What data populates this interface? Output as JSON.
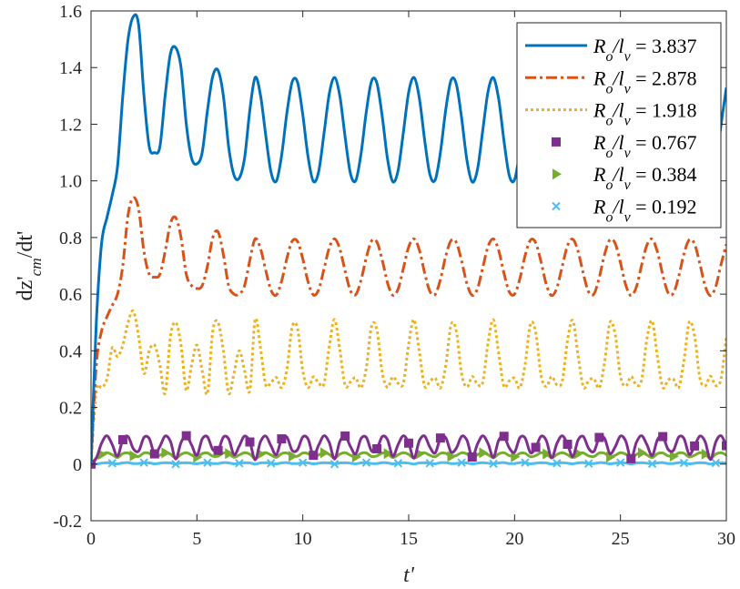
{
  "chart_data": {
    "type": "line",
    "title": "",
    "xlabel": "t'",
    "ylabel": "dz'_cm/dt'",
    "xlim": [
      0,
      30
    ],
    "ylim": [
      -0.2,
      1.6
    ],
    "xticks": [
      0,
      5,
      10,
      15,
      20,
      25,
      30
    ],
    "yticks": [
      -0.2,
      0,
      0.2,
      0.4,
      0.6,
      0.8,
      1.0,
      1.2,
      1.4,
      1.6
    ],
    "xtick_labels": [
      "0",
      "5",
      "10",
      "15",
      "20",
      "25",
      "30"
    ],
    "ytick_labels": [
      "-0.2",
      "0",
      "0.2",
      "0.4",
      "0.6",
      "0.8",
      "1.0",
      "1.2",
      "1.4",
      "1.6"
    ],
    "grid": false,
    "legend_position": "top-right",
    "x_start": 0,
    "x_step": 0.25,
    "series": [
      {
        "name": "R_o/l_v = 3.837",
        "color": "#0072BD",
        "style": "solid",
        "marker": "none",
        "values": [
          0,
          0.5,
          0.78,
          0.87,
          0.95,
          1.05,
          1.3,
          1.5,
          1.58,
          1.55,
          1.3,
          1.12,
          1.1,
          1.12,
          1.3,
          1.45,
          1.47,
          1.4,
          1.2,
          1.08,
          1.06,
          1.1,
          1.25,
          1.37,
          1.39,
          1.3,
          1.12,
          1.02,
          1.01,
          1.08,
          1.25,
          1.365,
          1.304,
          1.16,
          1.03,
          0.999,
          1.09,
          1.24,
          1.35,
          1.348,
          1.233,
          1.084,
          0.998,
          1.033,
          1.166,
          1.308,
          1.365,
          1.299,
          1.154,
          1.026,
          1.001,
          1.095,
          1.245,
          1.353,
          1.345,
          1.228,
          1.078,
          0.997,
          1.037,
          1.172,
          1.313,
          1.365,
          1.294,
          1.147,
          1.023,
          1.003,
          1.101,
          1.251,
          1.355,
          1.342,
          1.221,
          1.073,
          0.996,
          1.041,
          1.179,
          1.317,
          1.364,
          1.289,
          1.141,
          1.019,
          1.004,
          1.107,
          1.257,
          1.357,
          1.339,
          1.215,
          1.068,
          0.996,
          1.046,
          1.186,
          1.321,
          1.363,
          1.283,
          1.135,
          1.016,
          1.007,
          1.112,
          1.263,
          1.359,
          1.335,
          1.209,
          1.063,
          0.995,
          1.05,
          1.192,
          1.325,
          1.362,
          1.278,
          1.128,
          1.013,
          1.009,
          1.119,
          1.269,
          1.36,
          1.332,
          1.202,
          1.058,
          0.995,
          1.055,
          1.198,
          1.329
        ]
      },
      {
        "name": "R_o/l_v = 2.878",
        "color": "#D95319",
        "style": "dashdot",
        "marker": "none",
        "values": [
          0,
          0.35,
          0.47,
          0.52,
          0.56,
          0.6,
          0.7,
          0.88,
          0.94,
          0.9,
          0.75,
          0.67,
          0.66,
          0.67,
          0.75,
          0.85,
          0.87,
          0.8,
          0.67,
          0.63,
          0.62,
          0.63,
          0.7,
          0.8,
          0.82,
          0.74,
          0.63,
          0.6,
          0.6,
          0.63,
          0.72,
          0.795,
          0.762,
          0.684,
          0.614,
          0.597,
          0.646,
          0.727,
          0.787,
          0.786,
          0.724,
          0.643,
          0.597,
          0.616,
          0.688,
          0.764,
          0.795,
          0.759,
          0.681,
          0.612,
          0.598,
          0.649,
          0.73,
          0.788,
          0.784,
          0.721,
          0.64,
          0.596,
          0.618,
          0.691,
          0.767,
          0.795,
          0.757,
          0.677,
          0.61,
          0.599,
          0.652,
          0.734,
          0.789,
          0.783,
          0.717,
          0.637,
          0.596,
          0.62,
          0.694,
          0.769,
          0.795,
          0.754,
          0.674,
          0.608,
          0.6,
          0.655,
          0.737,
          0.791,
          0.781,
          0.714,
          0.634,
          0.595,
          0.623,
          0.698,
          0.771,
          0.794,
          0.751,
          0.671,
          0.607,
          0.601,
          0.659,
          0.74,
          0.792,
          0.779,
          0.711,
          0.632,
          0.595,
          0.625,
          0.702,
          0.774,
          0.794,
          0.748,
          0.667,
          0.605,
          0.603,
          0.662,
          0.743,
          0.792,
          0.777,
          0.707,
          0.629,
          0.595,
          0.627,
          0.705,
          0.776
        ]
      },
      {
        "name": "R_o/l_v = 1.918",
        "color": "#EDB120",
        "style": "dotted",
        "marker": "none",
        "values": [
          0,
          0.26,
          0.27,
          0.3,
          0.41,
          0.38,
          0.42,
          0.5,
          0.54,
          0.45,
          0.32,
          0.4,
          0.42,
          0.35,
          0.25,
          0.45,
          0.5,
          0.42,
          0.26,
          0.35,
          0.42,
          0.33,
          0.25,
          0.47,
          0.5,
          0.4,
          0.25,
          0.32,
          0.4,
          0.33,
          0.26,
          0.51,
          0.411,
          0.28,
          0.288,
          0.306,
          0.27,
          0.334,
          0.484,
          0.479,
          0.329,
          0.27,
          0.308,
          0.286,
          0.283,
          0.416,
          0.51,
          0.403,
          0.278,
          0.29,
          0.305,
          0.269,
          0.34,
          0.487,
          0.474,
          0.324,
          0.271,
          0.308,
          0.285,
          0.286,
          0.424,
          0.51,
          0.398,
          0.276,
          0.292,
          0.304,
          0.269,
          0.347,
          0.491,
          0.47,
          0.318,
          0.272,
          0.309,
          0.282,
          0.289,
          0.43,
          0.509,
          0.39,
          0.274,
          0.294,
          0.303,
          0.269,
          0.353,
          0.495,
          0.464,
          0.313,
          0.273,
          0.309,
          0.28,
          0.293,
          0.436,
          0.507,
          0.383,
          0.272,
          0.295,
          0.301,
          0.269,
          0.359,
          0.499,
          0.458,
          0.309,
          0.275,
          0.309,
          0.279,
          0.297,
          0.443,
          0.505,
          0.377,
          0.271,
          0.297,
          0.3,
          0.27,
          0.366,
          0.501,
          0.452,
          0.304,
          0.276,
          0.31,
          0.277,
          0.301,
          0.449
        ]
      },
      {
        "name": "R_o/l_v = 0.767",
        "color": "#7E2F8E",
        "style": "solid",
        "marker": "square",
        "values": [
          0,
          0.021,
          0.074,
          0.1,
          0.069,
          0.028,
          0.086,
          0.097,
          0.054,
          0.046,
          0.094,
          0.09,
          0.036,
          0.062,
          0.099,
          0.08,
          0.018,
          0.076,
          0.1,
          0.067,
          0.031,
          0.088,
          0.096,
          0.051,
          0.048,
          0.095,
          0.089,
          0.033,
          0.064,
          0.099,
          0.078,
          0.015,
          0.078,
          0.099,
          0.064,
          0.033,
          0.089,
          0.095,
          0.048,
          0.051,
          0.096,
          0.088,
          0.031,
          0.067,
          0.1,
          0.076,
          0.018,
          0.08,
          0.099,
          0.062,
          0.036,
          0.09,
          0.094,
          0.046,
          0.054,
          0.097,
          0.086,
          0.028,
          0.069,
          0.1,
          0.074,
          0.021,
          0.082,
          0.099,
          0.06,
          0.039,
          0.092,
          0.093,
          0.043,
          0.056,
          0.098,
          0.084,
          0.025,
          0.071,
          0.1,
          0.072,
          0.024,
          0.084,
          0.098,
          0.057,
          0.042,
          0.093,
          0.092,
          0.04,
          0.059,
          0.098,
          0.083,
          0.022,
          0.073,
          0.1,
          0.07,
          0.027,
          0.085,
          0.097,
          0.055,
          0.045,
          0.094,
          0.091,
          0.037,
          0.061,
          0.099,
          0.081,
          0.019,
          0.076,
          0.1,
          0.068,
          0.03,
          0.087,
          0.097,
          0.052,
          0.048,
          0.095,
          0.09,
          0.034,
          0.064,
          0.099,
          0.079,
          0.016,
          0.078,
          0.1,
          0.065
        ]
      },
      {
        "name": "R_o/l_v = 0.384",
        "color": "#77AC30",
        "style": "solid",
        "marker": "triangle-right",
        "values": [
          0,
          0.021,
          0.034,
          0.04,
          0.033,
          0.023,
          0.037,
          0.039,
          0.029,
          0.027,
          0.039,
          0.038,
          0.025,
          0.031,
          0.04,
          0.035,
          0.021,
          0.034,
          0.04,
          0.032,
          0.024,
          0.037,
          0.039,
          0.028,
          0.028,
          0.039,
          0.037,
          0.024,
          0.032,
          0.04,
          0.035,
          0.02,
          0.035,
          0.04,
          0.032,
          0.024,
          0.037,
          0.039,
          0.028,
          0.028,
          0.039,
          0.037,
          0.024,
          0.032,
          0.04,
          0.034,
          0.021,
          0.035,
          0.04,
          0.031,
          0.025,
          0.038,
          0.039,
          0.027,
          0.029,
          0.039,
          0.037,
          0.023,
          0.033,
          0.04,
          0.034,
          0.021,
          0.036,
          0.04,
          0.031,
          0.026,
          0.038,
          0.038,
          0.027,
          0.03,
          0.04,
          0.036,
          0.022,
          0.033,
          0.04,
          0.033,
          0.022,
          0.036,
          0.04,
          0.03,
          0.026,
          0.038,
          0.038,
          0.026,
          0.03,
          0.04,
          0.036,
          0.022,
          0.034,
          0.04,
          0.033,
          0.023,
          0.037,
          0.039,
          0.029,
          0.027,
          0.039,
          0.038,
          0.025,
          0.031,
          0.04,
          0.035,
          0.021,
          0.034,
          0.04,
          0.032,
          0.023,
          0.037,
          0.039,
          0.029,
          0.028,
          0.039,
          0.038,
          0.025,
          0.031,
          0.04,
          0.035,
          0.02,
          0.035,
          0.04,
          0.032
        ]
      },
      {
        "name": "R_o/l_v = 0.192",
        "color": "#4DBEEE",
        "style": "solid",
        "marker": "x",
        "values": [
          0,
          0,
          0.003,
          0.005,
          0.003,
          0.001,
          0.004,
          0.005,
          0.002,
          0.002,
          0.005,
          0.004,
          0.001,
          0.003,
          0.005,
          0.004,
          0,
          0.004,
          0.005,
          0.003,
          0.001,
          0.004,
          0.005,
          0.002,
          0.002,
          0.005,
          0.004,
          0.001,
          0.003,
          0.005,
          0.004,
          0,
          0.004,
          0.005,
          0.003,
          0.001,
          0.004,
          0.005,
          0.002,
          0.002,
          0.005,
          0.004,
          0.001,
          0.003,
          0.005,
          0.004,
          0,
          0.004,
          0.005,
          0.003,
          0.001,
          0.004,
          0.005,
          0.002,
          0.002,
          0.005,
          0.004,
          0.001,
          0.003,
          0.005,
          0.003,
          0,
          0.004,
          0.005,
          0.003,
          0.001,
          0.005,
          0.005,
          0.002,
          0.002,
          0.005,
          0.004,
          0.001,
          0.003,
          0.005,
          0.003,
          0.001,
          0.004,
          0.005,
          0.002,
          0.002,
          0.005,
          0.005,
          0.001,
          0.003,
          0.005,
          0.004,
          0,
          0.003,
          0.005,
          0.003,
          0.001,
          0.004,
          0.005,
          0.002,
          0.002,
          0.005,
          0.004,
          0.001,
          0.003,
          0.005,
          0.004,
          0,
          0.004,
          0.005,
          0.003,
          0.001,
          0.004,
          0.005,
          0.002,
          0.002,
          0.005,
          0.004,
          0.001,
          0.003,
          0.005,
          0.004,
          0,
          0.004,
          0.005,
          0.003
        ]
      }
    ]
  }
}
